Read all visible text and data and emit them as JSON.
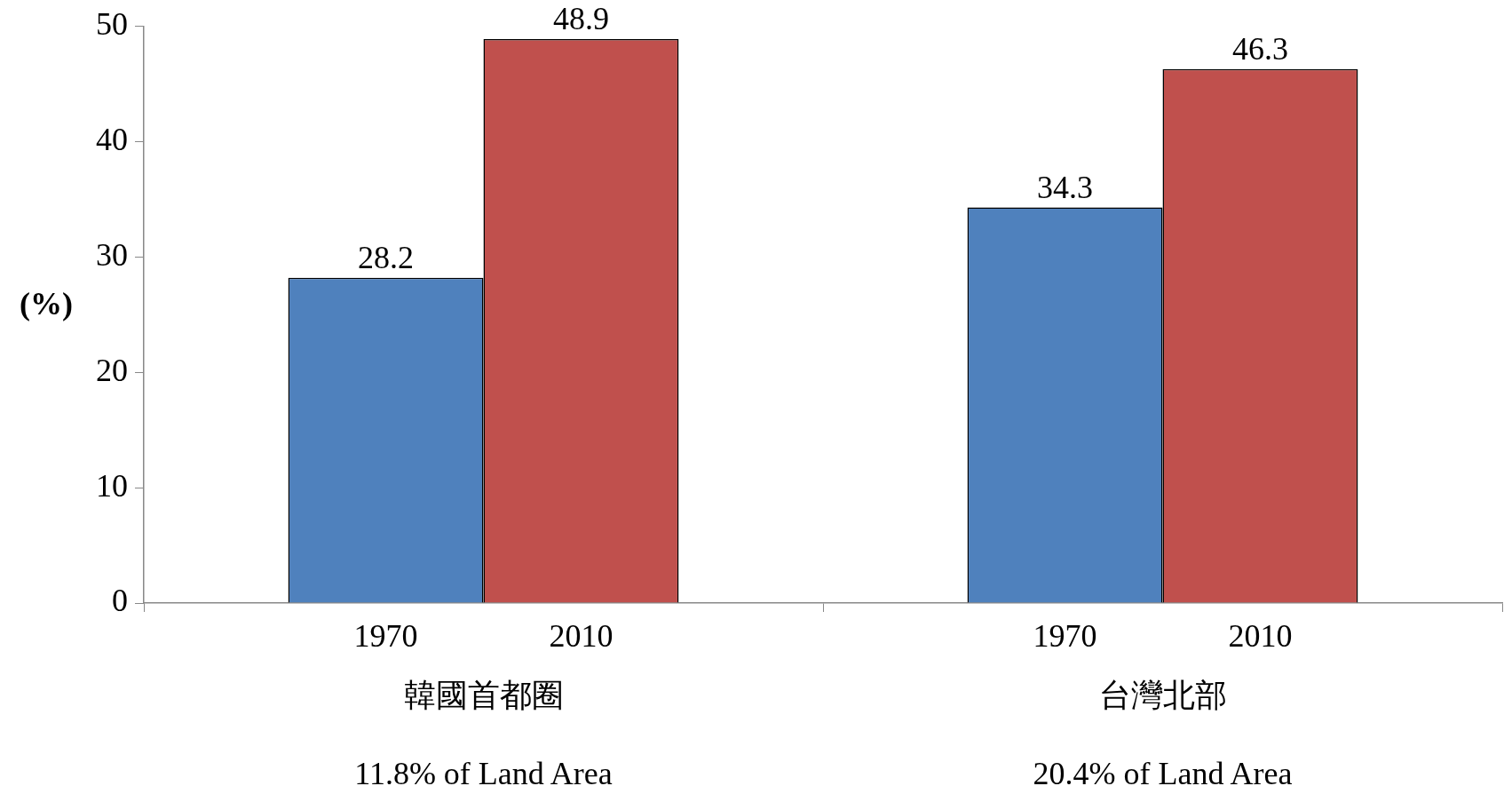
{
  "chart_data": {
    "type": "bar",
    "ylabel": "(%)",
    "categories": [
      "韓國首都圈",
      "台灣北部"
    ],
    "series": [
      {
        "name": "1970",
        "color": "#4f81bd",
        "values": [
          28.2,
          34.3
        ]
      },
      {
        "name": "2010",
        "color": "#c0504d",
        "values": [
          48.9,
          46.3
        ]
      }
    ],
    "ylim": [
      0,
      50
    ],
    "yticks": [
      0,
      10,
      20,
      30,
      40,
      50
    ],
    "grid": false,
    "legend": false,
    "data_labels": true,
    "annotations": [
      "11.8% of Land Area",
      "20.4% of Land Area"
    ]
  }
}
